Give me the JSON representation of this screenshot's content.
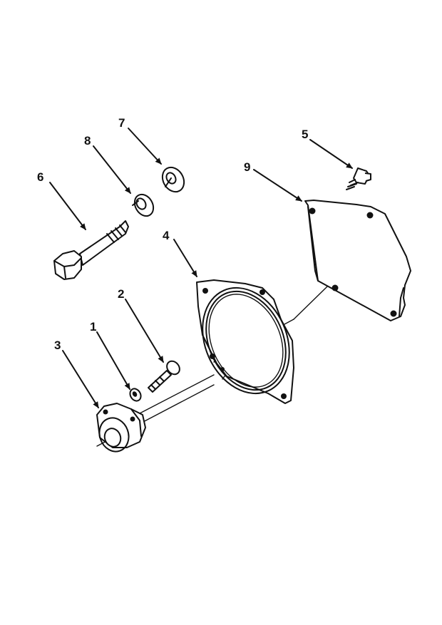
{
  "callouts": {
    "c1": "1",
    "c2": "2",
    "c3": "3",
    "c4": "4",
    "c5": "5",
    "c6": "6",
    "c7": "7",
    "c8": "8",
    "c9": "9"
  },
  "colors": {
    "ink": "#111111",
    "paper": "#ffffff"
  }
}
